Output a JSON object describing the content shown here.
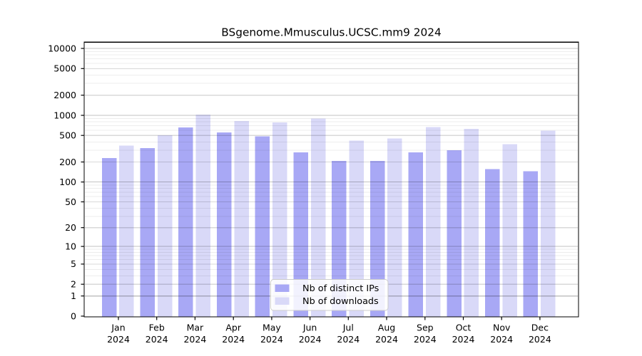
{
  "chart_data": {
    "type": "bar",
    "title": "BSgenome.Mmusculus.UCSC.mm9 2024",
    "categories": [
      "Jan",
      "Feb",
      "Mar",
      "Apr",
      "May",
      "Jun",
      "Jul",
      "Aug",
      "Sep",
      "Oct",
      "Nov",
      "Dec"
    ],
    "year": "2024",
    "series": [
      {
        "name": "Nb of distinct IPs",
        "color": "#a8a8f5",
        "values": [
          230,
          325,
          655,
          555,
          485,
          280,
          207,
          208,
          280,
          300,
          156,
          145
        ]
      },
      {
        "name": "Nb of downloads",
        "color": "#d9d9f8",
        "values": [
          350,
          505,
          1025,
          820,
          785,
          890,
          417,
          450,
          670,
          630,
          372,
          587
        ]
      }
    ],
    "y_ticks": [
      0,
      1,
      2,
      5,
      10,
      20,
      50,
      100,
      200,
      500,
      1000,
      2000,
      5000,
      10000
    ],
    "y_scale": "log10(1+v)",
    "ylim": [
      0,
      12000
    ],
    "xlabel": "",
    "ylabel": "",
    "grid": "major+minor, drawn above bars",
    "legend_position": "bottom-center"
  }
}
